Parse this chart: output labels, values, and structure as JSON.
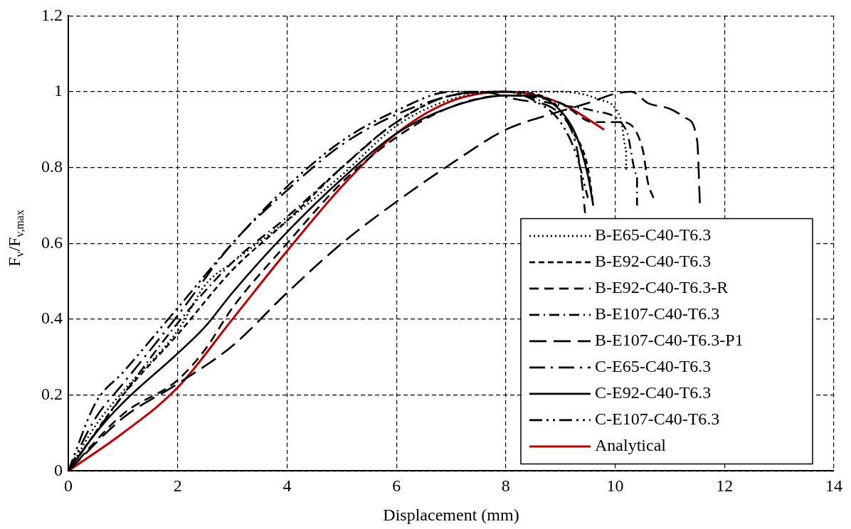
{
  "chart_data": {
    "type": "line",
    "xlabel": "Displacement (mm)",
    "ylabel": "F$_{v}$/F$_{v,max}$",
    "xlim": [
      0,
      14
    ],
    "xticks": [
      0,
      2,
      4,
      6,
      8,
      10,
      12,
      14
    ],
    "ylim": [
      0,
      1.2
    ],
    "yticks": [
      0,
      0.2,
      0.4,
      0.6,
      0.8,
      1,
      1.2
    ],
    "grid": true,
    "legend": "bottom right",
    "marker": "none",
    "series": [
      {
        "name": "B-E65-C40-T6.3",
        "color": "#000000",
        "line_style": "dotted",
        "x": [
          0,
          0.5,
          1,
          2,
          2.5,
          3,
          4,
          5,
          6,
          7,
          8,
          9,
          9.7,
          10.1,
          10.2,
          10.2
        ],
        "values": [
          0,
          0.12,
          0.21,
          0.37,
          0.49,
          0.55,
          0.66,
          0.78,
          0.91,
          0.98,
          1.0,
          1.0,
          0.98,
          0.93,
          0.85,
          0.79
        ]
      },
      {
        "name": "B-E92-C40-T6.3",
        "color": "#000000",
        "line_style": "dashed",
        "x": [
          0,
          1,
          2,
          3,
          4,
          5,
          6,
          7,
          8,
          8.8,
          9.2,
          9.5,
          9.6
        ],
        "values": [
          0,
          0.2,
          0.36,
          0.53,
          0.66,
          0.8,
          0.92,
          0.99,
          1.0,
          0.98,
          0.9,
          0.8,
          0.7
        ]
      },
      {
        "name": "B-E92-C40-T6.3-R",
        "color": "#000000",
        "line_style": "dashed",
        "x": [
          0,
          1,
          2,
          2.5,
          3,
          4,
          5,
          6,
          7,
          8,
          9,
          9.6,
          10.1,
          10.5,
          10.6,
          10.7
        ],
        "values": [
          0,
          0.15,
          0.24,
          0.32,
          0.43,
          0.6,
          0.76,
          0.88,
          0.96,
          0.99,
          0.97,
          0.92,
          0.92,
          0.85,
          0.76,
          0.72
        ]
      },
      {
        "name": "B-E107-C40-T6.3",
        "color": "#000000",
        "line_style": "dashed",
        "x": [
          0,
          1,
          2,
          3,
          4,
          5,
          6,
          7,
          8,
          8.8,
          9.6,
          10.2,
          10.4,
          10.4
        ],
        "values": [
          0,
          0.2,
          0.39,
          0.55,
          0.67,
          0.8,
          0.92,
          0.99,
          1.0,
          0.97,
          0.95,
          0.9,
          0.78,
          0.7
        ]
      },
      {
        "name": "B-E107-C40-T6.3-P1",
        "color": "#000000",
        "line_style": "dashed",
        "x": [
          0,
          1,
          2,
          3,
          4,
          5,
          6,
          7,
          8,
          8.8,
          9.5,
          10,
          10.3,
          10.6,
          11,
          11.3,
          11.5,
          11.55
        ],
        "values": [
          0,
          0.14,
          0.23,
          0.33,
          0.47,
          0.6,
          0.71,
          0.81,
          0.9,
          0.94,
          0.97,
          0.995,
          1.0,
          0.97,
          0.955,
          0.93,
          0.87,
          0.7
        ]
      },
      {
        "name": "C-E65-C40-T6.3",
        "color": "#000000",
        "line_style": "dashed",
        "x": [
          0,
          0.5,
          1,
          2,
          3,
          4,
          5,
          6,
          7,
          7.5,
          8.2,
          9,
          9.3,
          9.4,
          9.45
        ],
        "values": [
          0,
          0.14,
          0.23,
          0.41,
          0.6,
          0.74,
          0.86,
          0.94,
          0.99,
          1.0,
          0.98,
          0.94,
          0.85,
          0.75,
          0.68
        ]
      },
      {
        "name": "C-E92-C40-T6.3",
        "color": "#000000",
        "line_style": "solid",
        "x": [
          0,
          0.5,
          1,
          2,
          2.5,
          3,
          4,
          5,
          6,
          7,
          8,
          8.5,
          9,
          9.3,
          9.5,
          9.6
        ],
        "values": [
          0,
          0.1,
          0.18,
          0.31,
          0.38,
          0.47,
          0.63,
          0.77,
          0.89,
          0.96,
          0.99,
          0.99,
          0.95,
          0.88,
          0.78,
          0.7
        ]
      },
      {
        "name": "C-E107-C40-T6.3",
        "color": "#000000",
        "line_style": "dashed",
        "x": [
          0,
          0.5,
          1,
          2,
          3,
          4,
          5,
          6,
          7,
          8,
          8.6,
          9,
          9.3,
          9.5
        ],
        "values": [
          0,
          0.18,
          0.26,
          0.43,
          0.6,
          0.75,
          0.87,
          0.95,
          1.0,
          1.0,
          0.97,
          0.92,
          0.83,
          0.72
        ]
      },
      {
        "name": "Analytical",
        "color": "#c00000",
        "line_style": "solid",
        "x": [
          0,
          1,
          2,
          3,
          4,
          5,
          6,
          7,
          8,
          9,
          9.8
        ],
        "values": [
          0,
          0.1,
          0.22,
          0.4,
          0.58,
          0.75,
          0.89,
          0.975,
          1.0,
          0.97,
          0.9
        ]
      }
    ]
  }
}
